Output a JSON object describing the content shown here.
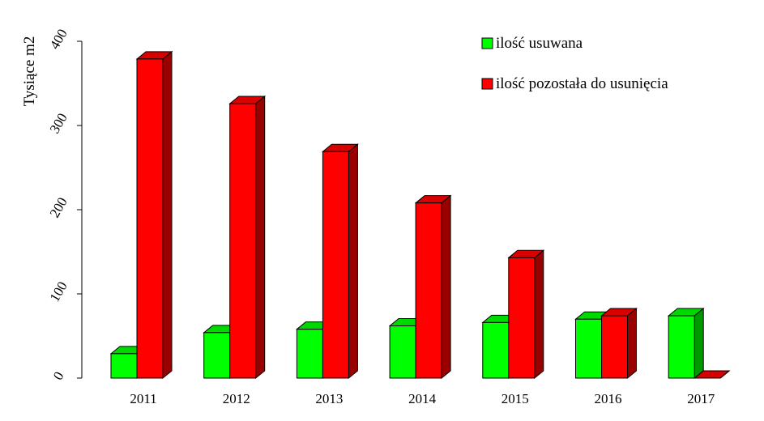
{
  "chart_data": {
    "type": "bar",
    "title": "",
    "xlabel": "",
    "ylabel": "Tysiące m2",
    "ylim": [
      0,
      400
    ],
    "yticks": [
      0,
      100,
      200,
      300,
      400
    ],
    "grid": false,
    "legend_position": "top-right",
    "categories": [
      "2011",
      "2012",
      "2013",
      "2014",
      "2015",
      "2016",
      "2017"
    ],
    "series": [
      {
        "name": "ilość usuwana",
        "color": "#00ff00",
        "values": [
          29,
          54,
          58,
          62,
          66,
          70,
          74
        ]
      },
      {
        "name": "ilość pozostała do usunięcia",
        "color": "#ff0000",
        "values": [
          379,
          326,
          269,
          208,
          143,
          74,
          0
        ]
      }
    ]
  }
}
